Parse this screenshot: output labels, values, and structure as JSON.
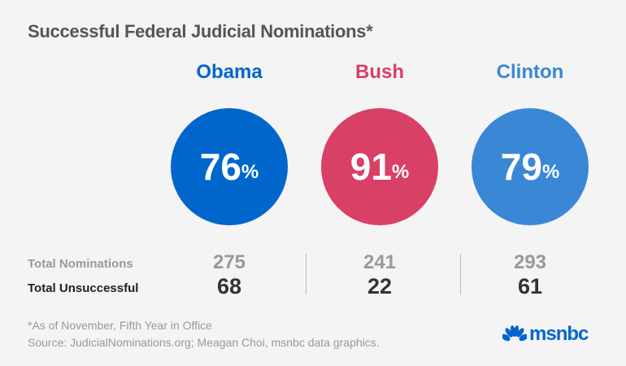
{
  "title": "Successful Federal Judicial Nominations*",
  "row_labels": {
    "total": "Total Nominations",
    "unsuccessful": "Total Unsuccessful"
  },
  "chart_data": {
    "type": "table",
    "categories": [
      "Obama",
      "Bush",
      "Clinton"
    ],
    "colors": [
      "#0066cc",
      "#d94066",
      "#3a87d6"
    ],
    "success_pct": [
      "76",
      "91",
      "79"
    ],
    "pct_sign": "%",
    "total_nominations": [
      "275",
      "241",
      "293"
    ],
    "total_unsuccessful": [
      "68",
      "22",
      "61"
    ]
  },
  "footnote": "*As of November, Fifth Year in Office",
  "source": "Source: JudicialNominations.org; Meagan Choi, msnbc data graphics.",
  "logo": {
    "text": "msnbc",
    "icon": "nbc-peacock-icon"
  }
}
